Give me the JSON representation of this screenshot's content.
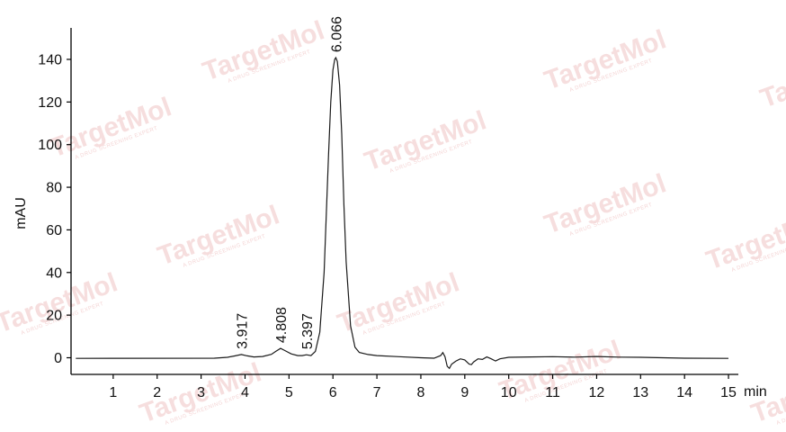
{
  "watermark": {
    "brand": "TargetMol",
    "tagline": "A DRUG SCREENING EXPERT",
    "color": "#f0c4c4"
  },
  "chart_data": {
    "type": "line",
    "title": "",
    "xlabel": "min",
    "ylabel": "mAU",
    "xlim": [
      0,
      15
    ],
    "ylim": [
      -6,
      152
    ],
    "x_ticks": [
      1,
      2,
      3,
      4,
      5,
      6,
      7,
      8,
      9,
      10,
      11,
      12,
      13,
      14,
      15
    ],
    "y_ticks": [
      0,
      20,
      40,
      60,
      80,
      100,
      120,
      140
    ],
    "grid": false,
    "line_color": "#1a1a1a",
    "series": [
      {
        "x": [
          0.15,
          3.3,
          3.6,
          3.75,
          3.917,
          4.05,
          4.2,
          4.4,
          4.6,
          4.7,
          4.808,
          4.9,
          5.05,
          5.2,
          5.3,
          5.397,
          5.5,
          5.6,
          5.7,
          5.8,
          5.9,
          5.95,
          6.0,
          6.04,
          6.066,
          6.1,
          6.15,
          6.2,
          6.25,
          6.3,
          6.4,
          6.5,
          6.6,
          6.8,
          7.0,
          7.5,
          8.0,
          8.3,
          8.45,
          8.5,
          8.55,
          8.6,
          8.65,
          8.7,
          8.8,
          8.9,
          9.0,
          9.1,
          9.15,
          9.2,
          9.3,
          9.4,
          9.5,
          9.6,
          9.7,
          9.8,
          10.0,
          10.5,
          11.0,
          11.5,
          12.0,
          12.5,
          13.0,
          14.0,
          15.0
        ],
        "y": [
          -0.3,
          -0.2,
          0.2,
          0.8,
          1.5,
          0.9,
          0.4,
          0.6,
          1.6,
          3.0,
          4.4,
          3.4,
          1.8,
          1.0,
          1.0,
          1.4,
          1.0,
          3.0,
          12.0,
          40.0,
          95.0,
          120.0,
          135.0,
          140.0,
          140.8,
          139.0,
          128.0,
          105.0,
          72.0,
          45.0,
          15.0,
          5.0,
          2.5,
          1.5,
          1.0,
          0.5,
          0.0,
          -0.2,
          1.0,
          2.4,
          0.5,
          -4.0,
          -5.0,
          -3.0,
          -1.5,
          -0.5,
          -1.0,
          -3.0,
          -3.2,
          -2.0,
          -0.5,
          -0.8,
          0.4,
          -0.5,
          -1.5,
          -0.5,
          0.2,
          0.4,
          0.5,
          0.3,
          0.6,
          0.3,
          0.2,
          -0.2,
          -0.3
        ]
      }
    ],
    "annotations": [
      {
        "x": 3.917,
        "y": 1.5,
        "text": "3.917"
      },
      {
        "x": 4.808,
        "y": 4.4,
        "text": "4.808"
      },
      {
        "x": 5.397,
        "y": 1.4,
        "text": "5.397"
      },
      {
        "x": 6.066,
        "y": 140.8,
        "text": "6.066"
      }
    ]
  }
}
